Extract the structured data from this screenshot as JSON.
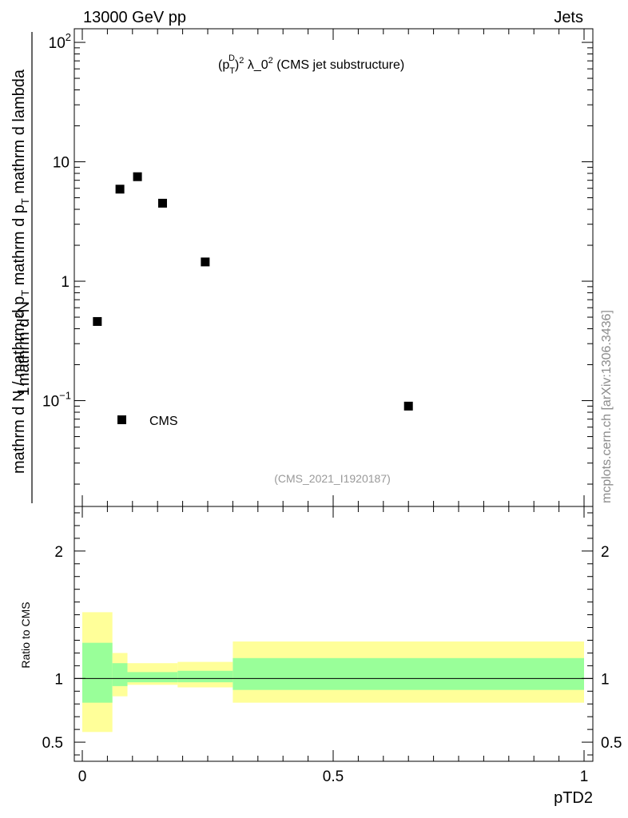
{
  "header": {
    "left": "13000 GeV pp",
    "right": "Jets"
  },
  "side_label": "mcplots.cern.ch [arXiv:1306.3436]",
  "watermark": "(CMS_2021_I1920187)",
  "colors": {
    "band_inner": "#99ff99",
    "band_outer": "#ffff99",
    "marker": "#000000"
  },
  "chart_data": [
    {
      "type": "scatter",
      "title_parts": {
        "open": "(p",
        "sub": "T",
        "sup_d": "D",
        "close": ")",
        "exp": "2",
        "lambda": " λ_0",
        "lambda_exp": "2",
        "rest": " (CMS jet substructure)"
      },
      "ylabel": {
        "numerator": "1",
        "frac_num": "mathrm d",
        "frac_num_sup": "2",
        "frac_num2": "N",
        "denominator": "mathrm d N / mathrm d p",
        "denominator_sub": "T",
        "denominator_rest": " mathrm d p",
        "denominator_sub2": "T",
        "denominator_rest2": " mathrm d lambda"
      },
      "yscale": "log",
      "ylim": [
        0.013,
        130
      ],
      "xlim": [
        0,
        1
      ],
      "yticks": [
        {
          "v": 100,
          "base": "10",
          "exp": "2"
        },
        {
          "v": 10,
          "base": "10",
          "exp": ""
        },
        {
          "v": 1,
          "base": "1",
          "exp": ""
        },
        {
          "v": 0.1,
          "base": "10",
          "exp": "−1"
        }
      ],
      "series": [
        {
          "name": "CMS",
          "x": [
            0.03,
            0.075,
            0.11,
            0.16,
            0.245,
            0.65
          ],
          "y": [
            0.46,
            5.9,
            7.5,
            4.5,
            1.45,
            0.09
          ]
        }
      ],
      "legend": {
        "position": "bottom-left",
        "label": "CMS"
      }
    },
    {
      "type": "area",
      "ylabel": "Ratio to CMS",
      "xlabel": "pTD2",
      "xlim": [
        0,
        1
      ],
      "ylim": [
        0.35,
        2.35
      ],
      "yticks": [
        {
          "v": 0.5,
          "label": "0.5"
        },
        {
          "v": 1,
          "label": "1"
        },
        {
          "v": 2,
          "label": "2"
        }
      ],
      "xticks": [
        {
          "v": 0,
          "label": "0"
        },
        {
          "v": 0.5,
          "label": "0.5"
        },
        {
          "v": 1,
          "label": "1"
        }
      ],
      "bins": [
        0,
        0.06,
        0.09,
        0.19,
        0.3,
        1.0
      ],
      "inner_lo": [
        0.81,
        0.94,
        0.97,
        0.97,
        0.91
      ],
      "inner_hi": [
        1.28,
        1.12,
        1.05,
        1.06,
        1.16
      ],
      "outer_lo": [
        0.58,
        0.86,
        0.95,
        0.93,
        0.81
      ],
      "outer_hi": [
        1.52,
        1.2,
        1.12,
        1.13,
        1.29
      ],
      "reference": 1
    }
  ]
}
